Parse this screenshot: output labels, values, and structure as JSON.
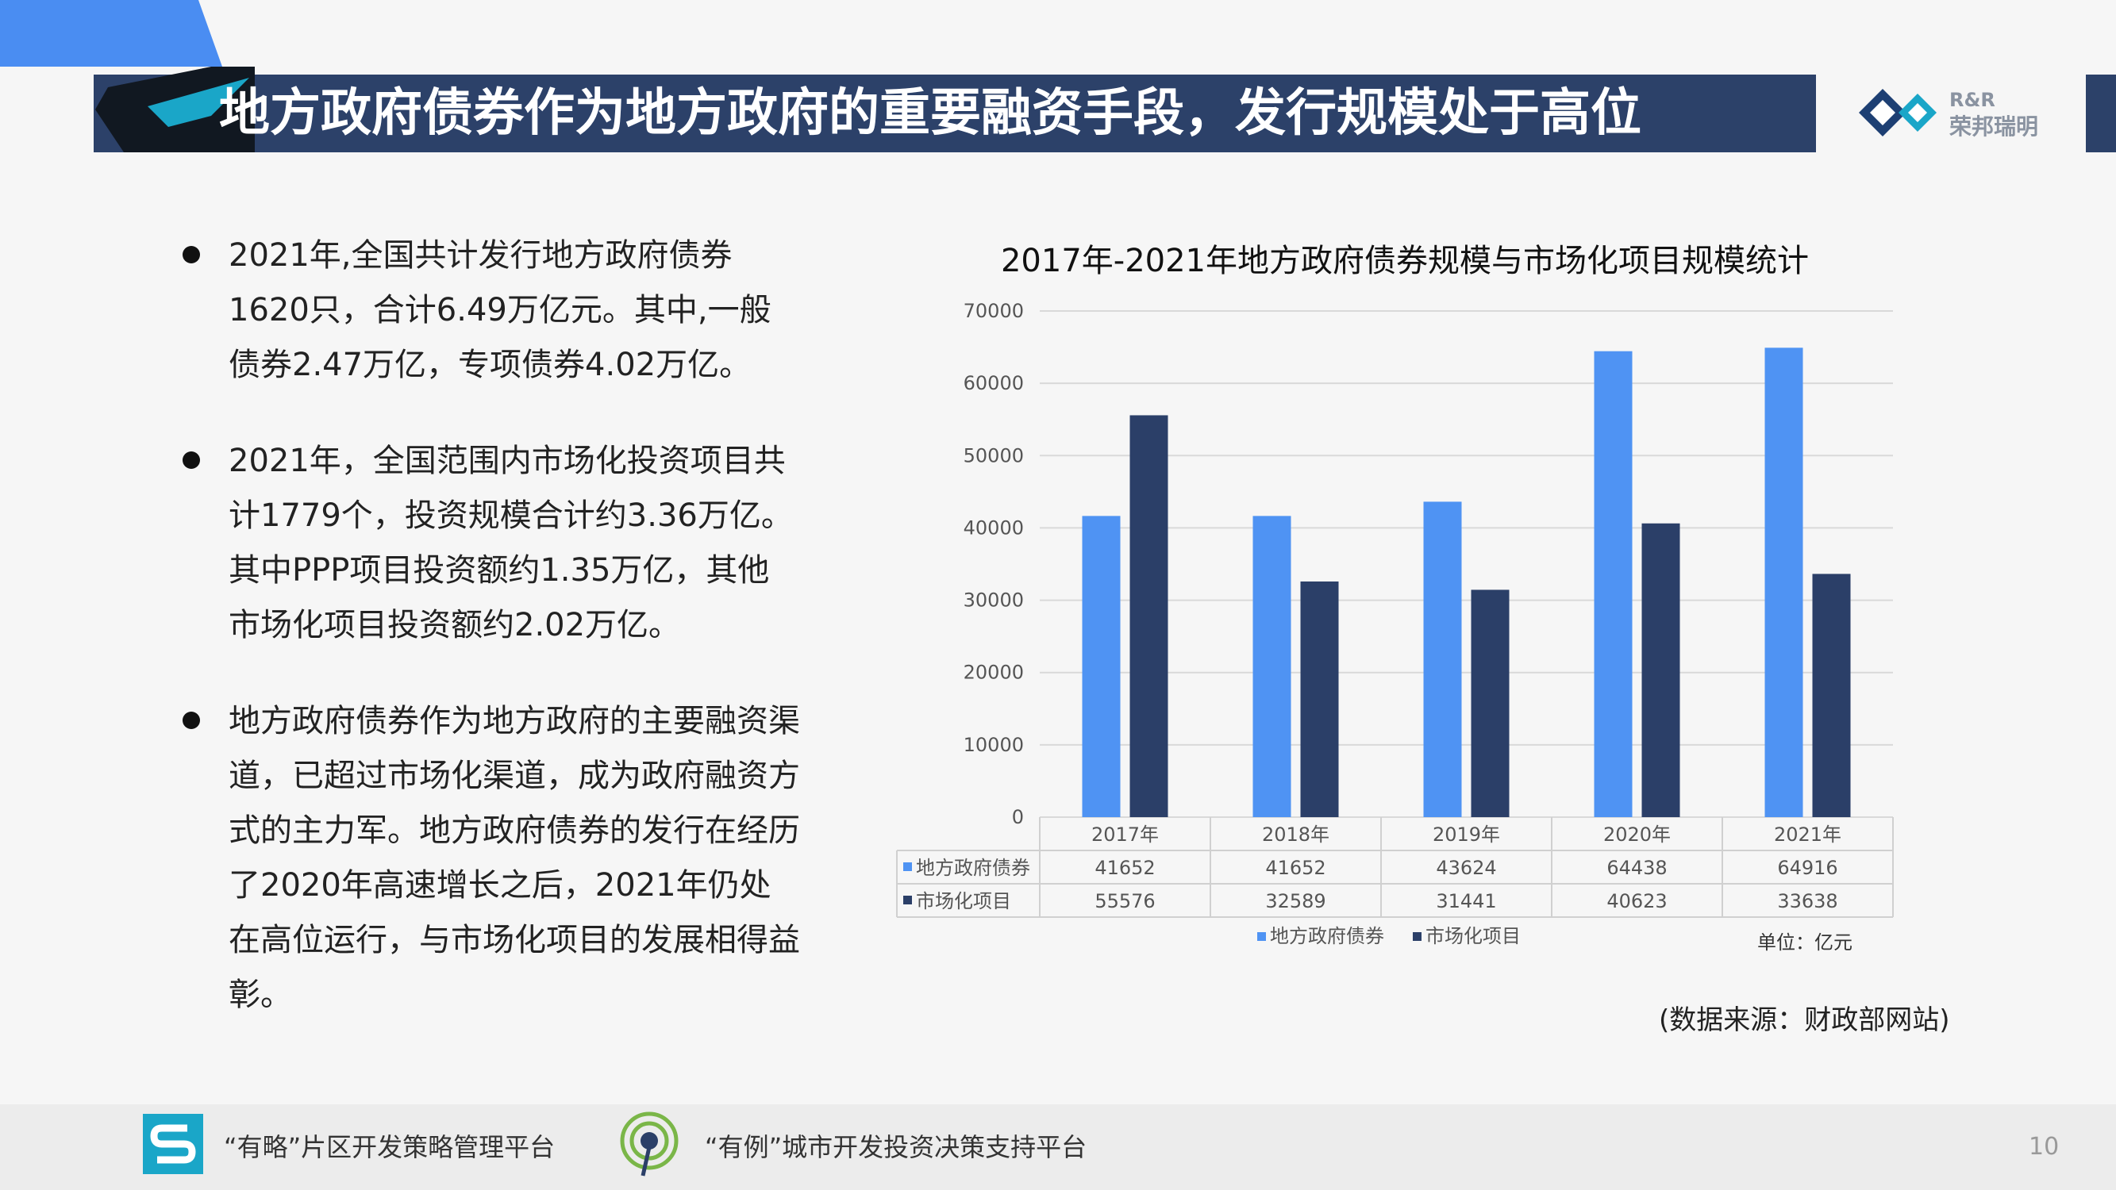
{
  "header": {
    "title": "地方政府债券作为地方政府的重要融资手段，发行规模处于高位",
    "logo_line1": "R&R",
    "logo_line2": "荣邦瑞明"
  },
  "bullets": [
    "2021年,全国共计发行地方政府债券1620只，合计6.49万亿元。其中,一般债券2.47万亿，专项债券4.02万亿。",
    "2021年，全国范围内市场化投资项目共计1779个，投资规模合计约3.36万亿。其中PPP项目投资额约1.35万亿，其他市场化项目投资额约2.02万亿。",
    "地方政府债券作为地方政府的主要融资渠道，已超过市场化渠道，成为政府融资方式的主力军。地方政府债券的发行在经历了2020年高速增长之后，2021年仍处在高位运行，与市场化项目的发展相得益彰。"
  ],
  "chart_data": {
    "type": "bar",
    "title": "2017年-2021年地方政府债券规模与市场化项目规模统计",
    "categories": [
      "2017年",
      "2018年",
      "2019年",
      "2020年",
      "2021年"
    ],
    "series": [
      {
        "name": "地方政府债券",
        "values": [
          41652,
          41652,
          43624,
          64438,
          64916
        ],
        "color": "#4f93f3"
      },
      {
        "name": "市场化项目",
        "values": [
          55576,
          32589,
          31441,
          40623,
          33638
        ],
        "color": "#2b3f68"
      }
    ],
    "ylim": [
      0,
      70000
    ],
    "yticks": [
      0,
      10000,
      20000,
      30000,
      40000,
      50000,
      60000,
      70000
    ],
    "grid": true,
    "data_table": true,
    "legend": "bottom",
    "unit": "单位：亿元"
  },
  "source": "(数据来源：财政部网站)",
  "footer": {
    "item1": "“有略”片区开发策略管理平台",
    "item2": "“有例”城市开发投资决策支持平台",
    "page": "10"
  }
}
